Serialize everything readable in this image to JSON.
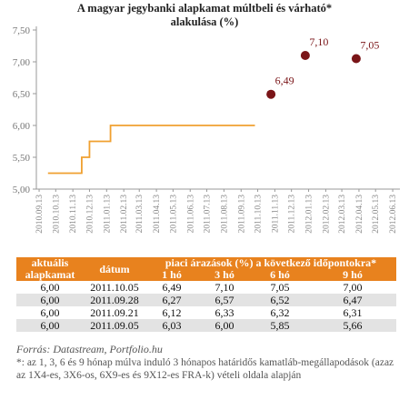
{
  "chart_data": {
    "type": "line-scatter",
    "title": "A magyar jegybanki alapkamat múltbeli és várható* alakulása (%)",
    "xlim": [
      "2010.09.08",
      "2012.06.26"
    ],
    "xticks": [
      "2010.09.13",
      "2010.10.13",
      "2010.11.13",
      "2010.12.13",
      "2011.01.13",
      "2011.02.13",
      "2011.03.13",
      "2011.04.13",
      "2011.05.13",
      "2011.06.13",
      "2011.07.13",
      "2011.08.13",
      "2011.09.13",
      "2011.10.13",
      "2011.11.13",
      "2011.12.13",
      "2012.01.13",
      "2012.02.13",
      "2012.03.13",
      "2012.04.13",
      "2012.05.13",
      "2012.06.13"
    ],
    "ylim": [
      5.0,
      7.5
    ],
    "yticks": [
      {
        "value": 5.0,
        "label": "5,00"
      },
      {
        "value": 5.5,
        "label": "5,50"
      },
      {
        "value": 6.0,
        "label": "6,00"
      },
      {
        "value": 6.5,
        "label": "6,50"
      },
      {
        "value": 7.0,
        "label": "7,00"
      },
      {
        "value": 7.5,
        "label": "7,50"
      }
    ],
    "grid": false,
    "series": [
      {
        "type": "line",
        "color": "#f0a030",
        "x": [
          "2010.09.29",
          "2010.11.29",
          "2010.11.29",
          "2010.12.13",
          "2010.12.13",
          "2011.01.20",
          "2011.01.20",
          "2011.10.08"
        ],
        "values": [
          5.25,
          5.25,
          5.5,
          5.5,
          5.75,
          5.75,
          6.0,
          6.0
        ]
      },
      {
        "type": "scatter",
        "color": "#7a1518",
        "x": [
          "2011.11.06",
          "2012.01.07",
          "2012.04.08"
        ],
        "values": [
          6.49,
          7.1,
          7.05
        ],
        "value_labels": [
          "6,49",
          "7,10",
          "7,05"
        ]
      }
    ]
  },
  "table": {
    "headers": {
      "current_rate": "aktuális alapkamat",
      "date": "dátum",
      "group": "piaci árazások (%) a következő időpontokra*",
      "horizons": [
        "1 hó",
        "3 hó",
        "6 hó",
        "9 hó"
      ]
    },
    "rows": [
      [
        "6,00",
        "2011.10.05",
        "6,49",
        "7,10",
        "7,05",
        "7,00"
      ],
      [
        "6,00",
        "2011.09.28",
        "6,27",
        "6,57",
        "6,52",
        "6,47"
      ],
      [
        "6,00",
        "2011.09.21",
        "6,12",
        "6,33",
        "6,32",
        "6,31"
      ],
      [
        "6,00",
        "2011.09.05",
        "6,03",
        "6,00",
        "5,85",
        "5,66"
      ]
    ]
  },
  "source": "Forrás: Datastream, Portfolio.hu",
  "footnote": "*: az 1, 3, 6 és 9 hónap múlva induló 3 hónapos határidős kamatláb-megállapodások (azaz az 1X4-es, 3X6-os, 6X9-es és 9X12-es FRA-k) vételi oldala alapján"
}
